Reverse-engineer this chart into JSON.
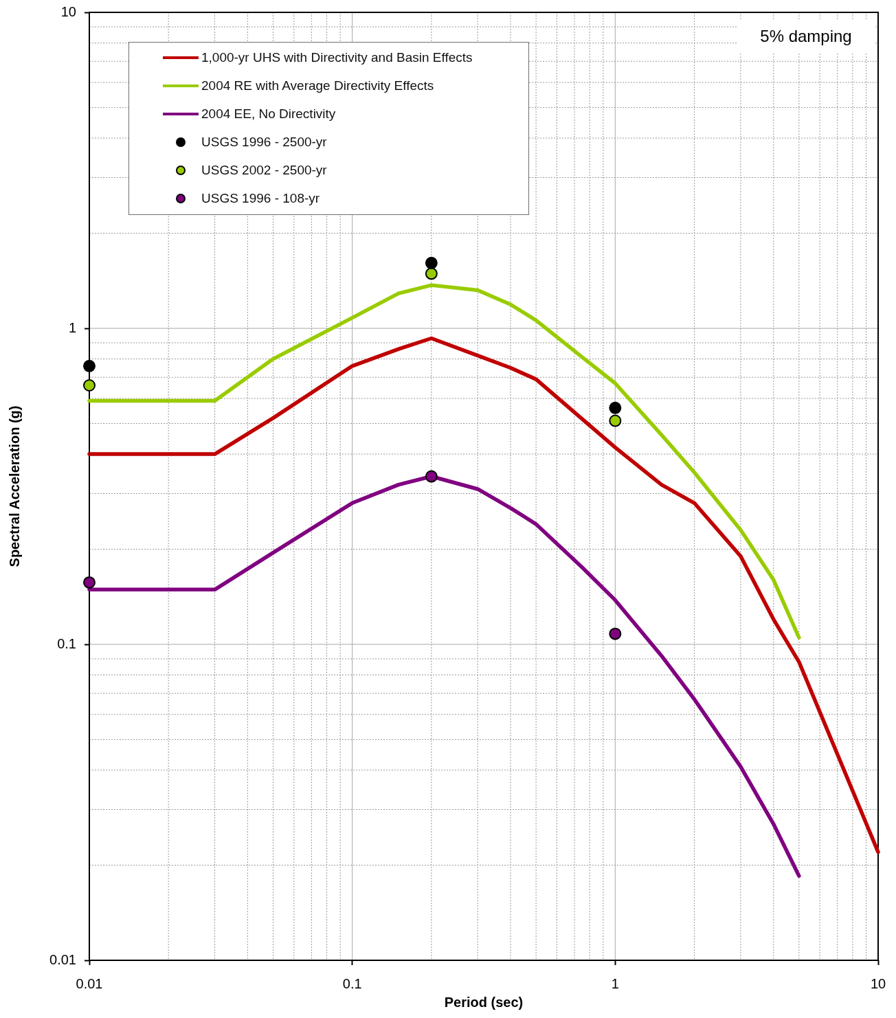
{
  "chart_data": {
    "type": "line",
    "xlabel": "Period (sec)",
    "ylabel": "Spectral Acceleration (g)",
    "annotations": [
      "5% damping"
    ],
    "log": "xy",
    "grid": true,
    "legend": "top left",
    "xlim": [
      0.01,
      10
    ],
    "ylim": [
      0.01,
      10
    ],
    "xticks": [
      0.01,
      {
        "value": 0.02,
        "label": null
      },
      {
        "value": 0.03,
        "label": null
      },
      {
        "value": 0.04,
        "label": null
      },
      {
        "value": 0.05,
        "label": null
      },
      {
        "value": 0.06,
        "label": null
      },
      {
        "value": 0.07,
        "label": null
      },
      {
        "value": 0.08,
        "label": null
      },
      {
        "value": 0.09,
        "label": null
      },
      0.1,
      {
        "value": 0.2,
        "label": null
      },
      {
        "value": 0.3,
        "label": null
      },
      {
        "value": 0.4,
        "label": null
      },
      {
        "value": 0.5,
        "label": null
      },
      {
        "value": 0.6,
        "label": null
      },
      {
        "value": 0.7,
        "label": null
      },
      {
        "value": 0.8,
        "label": null
      },
      {
        "value": 0.9,
        "label": null
      },
      1,
      {
        "value": 2,
        "label": null
      },
      {
        "value": 3,
        "label": null
      },
      {
        "value": 4,
        "label": null
      },
      {
        "value": 5,
        "label": null
      },
      {
        "value": 6,
        "label": null
      },
      {
        "value": 7,
        "label": null
      },
      {
        "value": 8,
        "label": null
      },
      {
        "value": 9,
        "label": null
      },
      10
    ],
    "yticks": [
      0.01,
      {
        "value": 0.02,
        "label": null
      },
      {
        "value": 0.03,
        "label": null
      },
      {
        "value": 0.04,
        "label": null
      },
      {
        "value": 0.05,
        "label": null
      },
      {
        "value": 0.06,
        "label": null
      },
      {
        "value": 0.07,
        "label": null
      },
      {
        "value": 0.08,
        "label": null
      },
      {
        "value": 0.09,
        "label": null
      },
      0.1,
      {
        "value": 0.2,
        "label": null
      },
      {
        "value": 0.3,
        "label": null
      },
      {
        "value": 0.4,
        "label": null
      },
      {
        "value": 0.5,
        "label": null
      },
      {
        "value": 0.6,
        "label": null
      },
      {
        "value": 0.7,
        "label": null
      },
      {
        "value": 0.8,
        "label": null
      },
      {
        "value": 0.9,
        "label": null
      },
      1,
      {
        "value": 2,
        "label": null
      },
      {
        "value": 3,
        "label": null
      },
      {
        "value": 4,
        "label": null
      },
      {
        "value": 5,
        "label": null
      },
      {
        "value": 6,
        "label": null
      },
      {
        "value": 7,
        "label": null
      },
      {
        "value": 8,
        "label": null
      },
      {
        "value": 9,
        "label": null
      },
      10
    ],
    "series": [
      {
        "name": "1,000-yr UHS with Directivity and Basin Effects",
        "color": "#c00000",
        "marker": "none",
        "line_style": "solid",
        "x": [
          0.01,
          0.03,
          0.05,
          0.1,
          0.15,
          0.2,
          0.3,
          0.4,
          0.5,
          1,
          1.5,
          2,
          3,
          4,
          5,
          10
        ],
        "values": [
          0.4,
          0.4,
          0.52,
          0.76,
          0.86,
          0.93,
          0.82,
          0.75,
          0.69,
          0.42,
          0.32,
          0.28,
          0.19,
          0.12,
          0.088,
          0.022
        ]
      },
      {
        "name": "2004 RE with Average Directivity Effects",
        "color": "#99cc00",
        "marker": "none",
        "line_style": "solid",
        "x": [
          0.01,
          0.03,
          0.05,
          0.1,
          0.15,
          0.2,
          0.3,
          0.4,
          0.5,
          0.75,
          1,
          1.5,
          2,
          3,
          4,
          5
        ],
        "values": [
          0.59,
          0.59,
          0.8,
          1.08,
          1.29,
          1.37,
          1.32,
          1.19,
          1.06,
          0.81,
          0.67,
          0.46,
          0.35,
          0.23,
          0.16,
          0.105
        ]
      },
      {
        "name": "2004 EE, No Directivity",
        "color": "#800080",
        "marker": "none",
        "line_style": "solid",
        "x": [
          0.01,
          0.03,
          0.05,
          0.1,
          0.15,
          0.2,
          0.3,
          0.4,
          0.5,
          0.75,
          1,
          1.5,
          2,
          3,
          4,
          5
        ],
        "values": [
          0.149,
          0.149,
          0.195,
          0.28,
          0.32,
          0.34,
          0.31,
          0.27,
          0.24,
          0.175,
          0.138,
          0.092,
          0.067,
          0.041,
          0.027,
          0.0185
        ]
      },
      {
        "name": "USGS 1996 - 2500-yr",
        "type": "scatter",
        "color": "#000000",
        "marker": "circle",
        "x": [
          0.01,
          0.2,
          1
        ],
        "values": [
          0.76,
          1.61,
          0.56
        ]
      },
      {
        "name": "USGS 2002 - 2500-yr",
        "type": "scatter",
        "color": "#99cc00",
        "marker": "circle",
        "x": [
          0.01,
          0.2,
          1
        ],
        "values": [
          0.66,
          1.49,
          0.51
        ]
      },
      {
        "name": "USGS 1996 - 108-yr",
        "type": "scatter",
        "color": "#800080",
        "marker": "circle",
        "x": [
          0.01,
          0.2,
          1
        ],
        "values": [
          0.157,
          0.34,
          0.108
        ]
      }
    ]
  }
}
